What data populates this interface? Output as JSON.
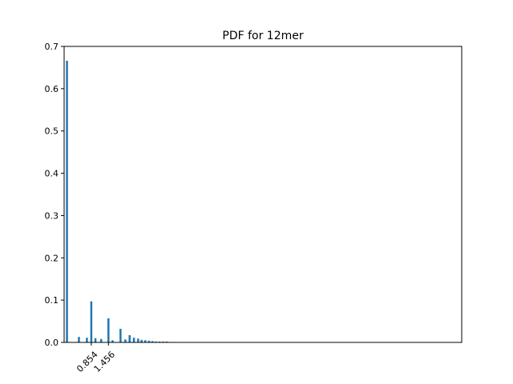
{
  "chart_data": {
    "type": "bar",
    "title": "PDF for 12mer",
    "xlabel": "",
    "ylabel": "",
    "xlim": [
      -0.1,
      13.86
    ],
    "ylim": [
      0,
      0.7
    ],
    "grid": false,
    "bar_color": "#1f77b4",
    "yticks": [
      0.0,
      0.1,
      0.2,
      0.3,
      0.4,
      0.5,
      0.6,
      0.7
    ],
    "ytick_labels": [
      "0.0",
      "0.1",
      "0.2",
      "0.3",
      "0.4",
      "0.5",
      "0.6",
      "0.7"
    ],
    "xticks": [
      0.854,
      1.456
    ],
    "xtick_labels": [
      "0.854",
      "1.456"
    ],
    "x": [
      0.0,
      0.42,
      0.7,
      0.854,
      1.0,
      1.2,
      1.456,
      1.6,
      1.88,
      2.05,
      2.2,
      2.35,
      2.5,
      2.62,
      2.75,
      2.88,
      3.0,
      3.12,
      3.25,
      3.37,
      3.5,
      3.62,
      3.72
    ],
    "values": [
      0.666,
      0.013,
      0.011,
      0.097,
      0.01,
      0.008,
      0.057,
      0.005,
      0.032,
      0.007,
      0.017,
      0.011,
      0.009,
      0.006,
      0.005,
      0.004,
      0.003,
      0.002,
      0.002,
      0.002,
      0.002,
      0.001,
      0.001
    ]
  }
}
